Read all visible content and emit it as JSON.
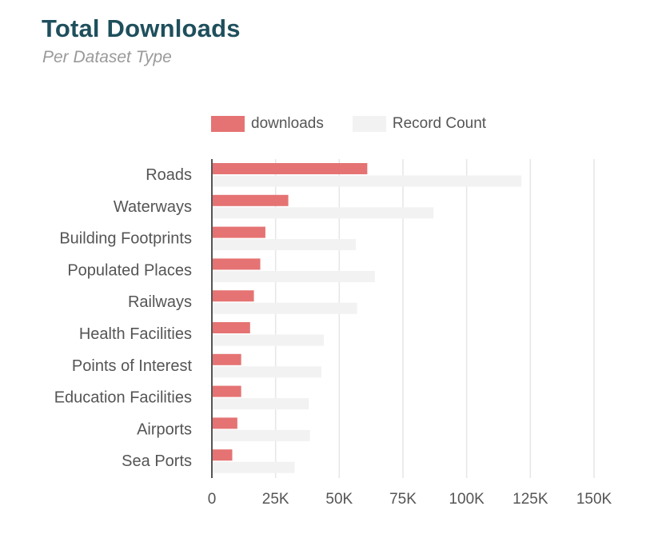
{
  "header": {
    "title": "Total Downloads",
    "subtitle": "Per Dataset Type"
  },
  "colors": {
    "downloads": "#e57373",
    "record_count": "#f2f2f2",
    "grid": "#e6e6e6",
    "axis": "#555555",
    "label": "#555555",
    "title": "#1e4f5c"
  },
  "chart_data": {
    "type": "bar",
    "orientation": "horizontal",
    "title": "Total Downloads",
    "subtitle": "Per Dataset Type",
    "categories": [
      "Roads",
      "Waterways",
      "Building Footprints",
      "Populated Places",
      "Railways",
      "Health Facilities",
      "Points of Interest",
      "Education Facilities",
      "Airports",
      "Sea Ports"
    ],
    "series": [
      {
        "name": "downloads",
        "values": [
          61000,
          30000,
          21000,
          19000,
          16500,
          15000,
          11500,
          11500,
          10000,
          8000
        ]
      },
      {
        "name": "Record Count",
        "values": [
          121500,
          87000,
          56500,
          64000,
          57000,
          44000,
          43000,
          38000,
          38500,
          32500
        ]
      }
    ],
    "xlim": [
      0,
      150000
    ],
    "xticks": [
      "0",
      "25K",
      "50K",
      "75K",
      "100K",
      "125K",
      "150K"
    ],
    "grid": true,
    "legend_position": "top"
  }
}
